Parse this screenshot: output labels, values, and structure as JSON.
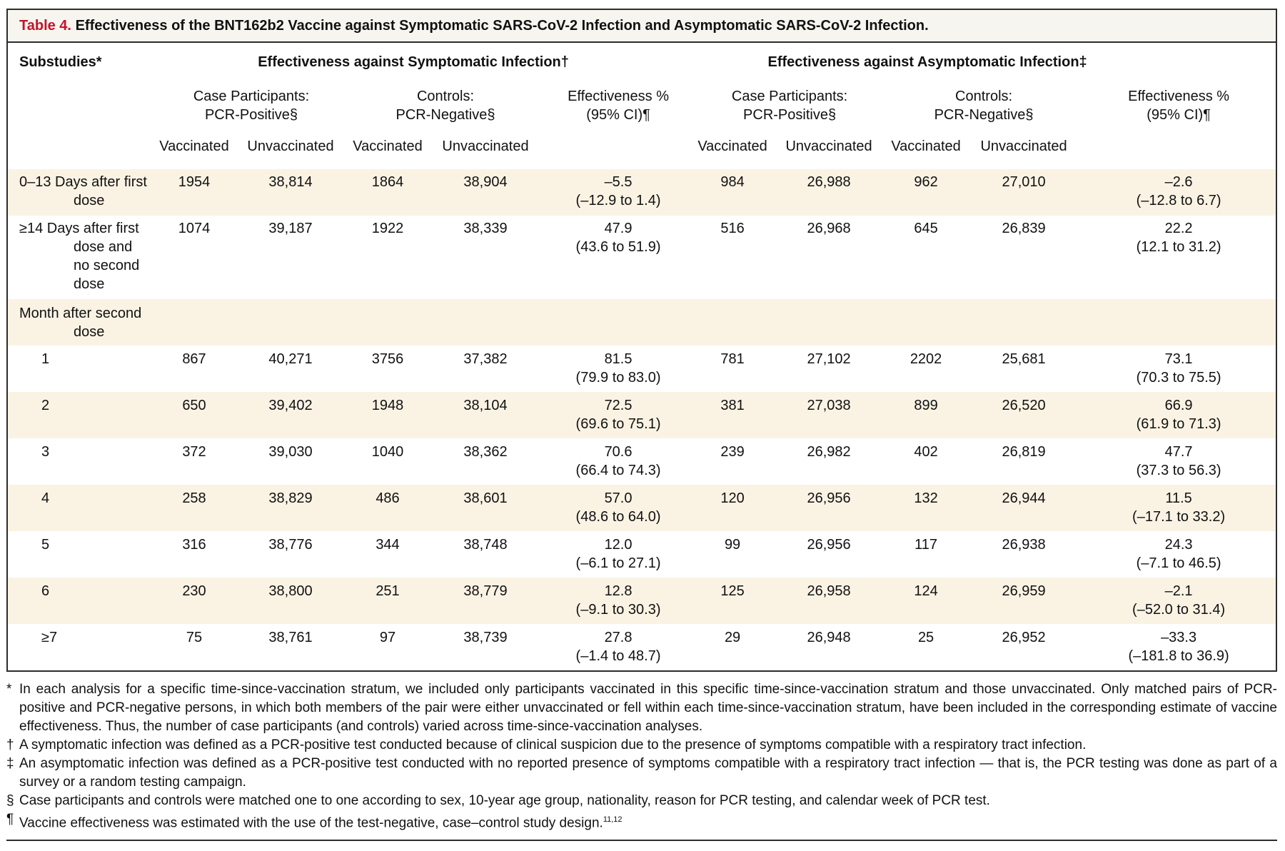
{
  "title": {
    "number": "Table 4.",
    "text": "Effectiveness of the BNT162b2 Vaccine against Symptomatic SARS-CoV-2 Infection and Asymptomatic SARS-CoV-2 Infection."
  },
  "header": {
    "substudies": "Substudies*",
    "symptomatic": "Effectiveness against Symptomatic Infection†",
    "asymptomatic": "Effectiveness against Asymptomatic Infection‡",
    "cases_l1": "Case Participants:",
    "cases_l2": "PCR-Positive§",
    "controls_l1": "Controls:",
    "controls_l2": "PCR-Negative§",
    "eff_l1": "Effectiveness %",
    "eff_l2": "(95% CI)¶",
    "vaccinated": "Vaccinated",
    "unvaccinated": "Unvaccinated"
  },
  "rows": [
    {
      "l1": "0–13 Days after first",
      "l2": "dose",
      "l3": "",
      "l4": "",
      "c": [
        "1954",
        "38,814",
        "1864",
        "38,904",
        "–5.5",
        "(–12.9 to 1.4)",
        "984",
        "26,988",
        "962",
        "27,010",
        "–2.6",
        "(–12.8 to 6.7)"
      ]
    },
    {
      "l1": "≥14 Days after first",
      "l2": "dose and",
      "l3": "no second",
      "l4": "dose",
      "c": [
        "1074",
        "39,187",
        "1922",
        "38,339",
        "47.9",
        "(43.6 to 51.9)",
        "516",
        "26,968",
        "645",
        "26,839",
        "22.2",
        "(12.1 to 31.2)"
      ]
    },
    {
      "l1": "Month after second",
      "l2": "dose"
    },
    {
      "l1": "1",
      "c": [
        "867",
        "40,271",
        "3756",
        "37,382",
        "81.5",
        "(79.9 to 83.0)",
        "781",
        "27,102",
        "2202",
        "25,681",
        "73.1",
        "(70.3 to 75.5)"
      ]
    },
    {
      "l1": "2",
      "c": [
        "650",
        "39,402",
        "1948",
        "38,104",
        "72.5",
        "(69.6 to 75.1)",
        "381",
        "27,038",
        "899",
        "26,520",
        "66.9",
        "(61.9 to 71.3)"
      ]
    },
    {
      "l1": "3",
      "c": [
        "372",
        "39,030",
        "1040",
        "38,362",
        "70.6",
        "(66.4 to 74.3)",
        "239",
        "26,982",
        "402",
        "26,819",
        "47.7",
        "(37.3 to 56.3)"
      ]
    },
    {
      "l1": "4",
      "c": [
        "258",
        "38,829",
        "486",
        "38,601",
        "57.0",
        "(48.6 to 64.0)",
        "120",
        "26,956",
        "132",
        "26,944",
        "11.5",
        "(–17.1 to 33.2)"
      ]
    },
    {
      "l1": "5",
      "c": [
        "316",
        "38,776",
        "344",
        "38,748",
        "12.0",
        "(–6.1 to 27.1)",
        "99",
        "26,956",
        "117",
        "26,938",
        "24.3",
        "(–7.1 to 46.5)"
      ]
    },
    {
      "l1": "6",
      "c": [
        "230",
        "38,800",
        "251",
        "38,779",
        "12.8",
        "(–9.1 to 30.3)",
        "125",
        "26,958",
        "124",
        "26,959",
        "–2.1",
        "(–52.0 to 31.4)"
      ]
    },
    {
      "l1": "≥7",
      "c": [
        "75",
        "38,761",
        "97",
        "38,739",
        "27.8",
        "(–1.4 to 48.7)",
        "29",
        "26,948",
        "25",
        "26,952",
        "–33.3",
        "(–181.8 to 36.9)"
      ]
    }
  ],
  "footnotes": [
    {
      "sym": "*",
      "text": "In each analysis for a specific time-since-vaccination stratum, we included only participants vaccinated in this specific time-since-vaccination stratum and those unvaccinated. Only matched pairs of PCR-positive and PCR-negative persons, in which both members of the pair were either unvaccinated or fell within each time-since-vaccination stratum, have been included in the corresponding estimate of vaccine effectiveness. Thus, the number of case participants (and controls) varied across time-since-vaccination analyses."
    },
    {
      "sym": "†",
      "text": "A symptomatic infection was defined as a PCR-positive test conducted because of clinical suspicion due to the presence of symptoms compatible with a respiratory tract infection."
    },
    {
      "sym": "‡",
      "text": "An asymptomatic infection was defined as a PCR-positive test conducted with no reported presence of symptoms compatible with a respiratory tract infection — that is, the PCR testing was done as part of a survey or a random testing campaign."
    },
    {
      "sym": "§",
      "text": "Case participants and controls were matched one to one according to sex, 10-year age group, nationality, reason for PCR testing, and calendar week of PCR test."
    },
    {
      "sym": "¶",
      "text": "Vaccine effectiveness was estimated with the use of the test-negative, case–control study design.",
      "sup": "11,12"
    }
  ]
}
